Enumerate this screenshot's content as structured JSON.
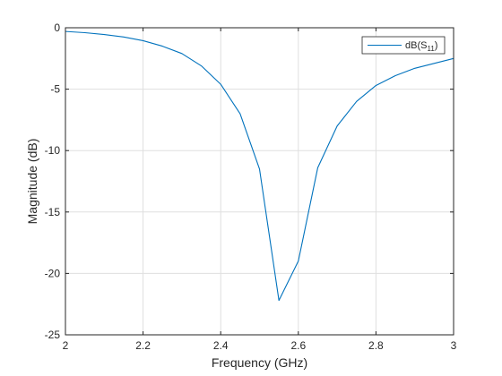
{
  "chart_data": {
    "type": "line",
    "title": "",
    "xlabel": "Frequency (GHz)",
    "ylabel": "Magnitude (dB)",
    "xlim": [
      2,
      3
    ],
    "ylim": [
      -25,
      0
    ],
    "xticks": [
      2,
      2.2,
      2.4,
      2.6,
      2.8,
      3
    ],
    "xtick_labels": [
      "2",
      "2.2",
      "2.4",
      "2.6",
      "2.8",
      "3"
    ],
    "yticks": [
      0,
      -5,
      -10,
      -15,
      -20,
      -25
    ],
    "ytick_labels": [
      "0",
      "-5",
      "-10",
      "-15",
      "-20",
      "-25"
    ],
    "grid": true,
    "legend_position": "top-right",
    "series": [
      {
        "name": "dB(S11)",
        "legend_main": "dB(S",
        "legend_sub": "11",
        "legend_end": ")",
        "color": "#0072BD",
        "x": [
          2.0,
          2.05,
          2.1,
          2.15,
          2.2,
          2.25,
          2.3,
          2.35,
          2.4,
          2.45,
          2.5,
          2.55,
          2.6,
          2.65,
          2.7,
          2.75,
          2.8,
          2.85,
          2.9,
          2.95,
          3.0
        ],
        "y": [
          -0.3,
          -0.4,
          -0.55,
          -0.75,
          -1.05,
          -1.5,
          -2.1,
          -3.1,
          -4.6,
          -7.0,
          -11.5,
          -22.2,
          -19.0,
          -11.4,
          -8.0,
          -6.0,
          -4.7,
          -3.9,
          -3.3,
          -2.9,
          -2.5
        ]
      }
    ]
  }
}
